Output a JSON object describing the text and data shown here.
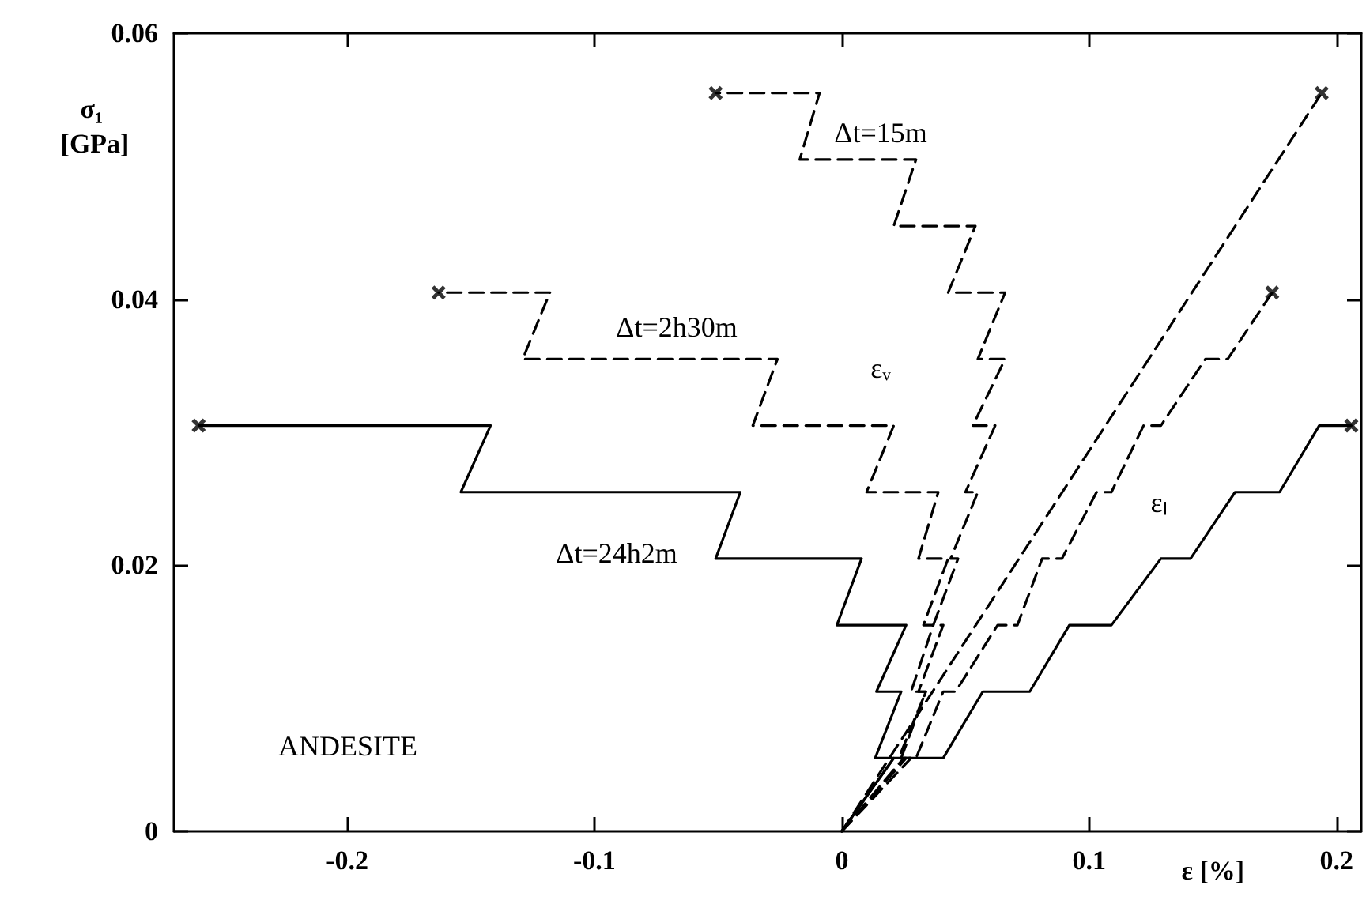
{
  "chart_data": {
    "type": "line",
    "ylabel": "σ₁ [GPa]",
    "xlabel": "ε [%]",
    "xlim": [
      -0.27,
      0.21
    ],
    "xticks": [
      -0.2,
      -0.1,
      0,
      0.1,
      0.2
    ],
    "ylim": [
      0,
      0.06
    ],
    "yticks": [
      0,
      0.02,
      0.04,
      0.06
    ],
    "grid": false,
    "annotations": [
      "Δt=15m",
      "Δt=2h30m",
      "Δt=24h2m",
      "εᵥ",
      "εₗ",
      "ANDESITE"
    ],
    "series": [
      {
        "color": "#000000",
        "line_style": "solid",
        "marker": "none",
        "x": [
          0,
          0.021,
          0.0135,
          0.024,
          0.014,
          0.026,
          -0.002,
          0.008,
          -0.051,
          -0.041,
          -0.154,
          -0.142,
          -0.26
        ],
        "values": [
          0,
          0.0055,
          0.0055,
          0.0105,
          0.0105,
          0.0155,
          0.0155,
          0.0205,
          0.0205,
          0.0255,
          0.0255,
          0.0305,
          0.0305
        ]
      },
      {
        "color": "#000000",
        "line_style": "solid",
        "marker": "none",
        "x": [
          0,
          0.021,
          0.041,
          0.057,
          0.076,
          0.092,
          0.109,
          0.129,
          0.141,
          0.159,
          0.177,
          0.193,
          0.206
        ],
        "values": [
          0,
          0.0055,
          0.0055,
          0.0105,
          0.0105,
          0.0155,
          0.0155,
          0.0205,
          0.0205,
          0.0255,
          0.0255,
          0.0305,
          0.0305
        ]
      },
      {
        "color": "#000000",
        "line_style": "dashed",
        "marker": "none",
        "x": [
          0,
          0.028,
          0.024,
          0.034,
          0.028,
          0.037,
          0.033,
          0.043,
          0.031,
          0.039,
          0.01,
          0.021,
          -0.036,
          -0.026,
          -0.129,
          -0.118,
          -0.163
        ],
        "values": [
          0,
          0.0055,
          0.0055,
          0.0105,
          0.0105,
          0.0155,
          0.0155,
          0.0205,
          0.0205,
          0.0255,
          0.0255,
          0.0305,
          0.0305,
          0.0355,
          0.0355,
          0.0405,
          0.0405
        ]
      },
      {
        "color": "#000000",
        "line_style": "dashed",
        "marker": "none",
        "x": [
          0,
          0.025,
          0.03,
          0.041,
          0.046,
          0.063,
          0.071,
          0.081,
          0.089,
          0.103,
          0.109,
          0.122,
          0.129,
          0.147,
          0.156,
          0.174
        ],
        "values": [
          0,
          0.0055,
          0.0055,
          0.0105,
          0.0105,
          0.0155,
          0.0155,
          0.0205,
          0.0205,
          0.0255,
          0.0255,
          0.0305,
          0.0305,
          0.0355,
          0.0355,
          0.0405
        ]
      },
      {
        "color": "#000000",
        "line_style": "dashed",
        "marker": "none",
        "x": [
          0,
          0.026,
          0.023,
          0.034,
          0.031,
          0.041,
          0.037,
          0.047,
          0.044,
          0.055,
          0.05,
          0.062,
          0.053,
          0.066,
          0.055,
          0.066,
          0.043,
          0.054,
          0.021,
          0.03,
          -0.017,
          -0.009,
          -0.051
        ],
        "values": [
          0,
          0.0055,
          0.0055,
          0.0105,
          0.0105,
          0.0155,
          0.0155,
          0.0205,
          0.0205,
          0.0255,
          0.0255,
          0.0305,
          0.0305,
          0.0355,
          0.0355,
          0.0405,
          0.0405,
          0.0455,
          0.0455,
          0.0505,
          0.0505,
          0.0555,
          0.0555
        ]
      },
      {
        "color": "#000000",
        "line_style": "dashed",
        "marker": "none",
        "x": [
          0,
          0.194
        ],
        "values": [
          0,
          0.0555
        ]
      },
      {
        "type": "scatter",
        "color": "#000000",
        "marker": "cross",
        "x": [
          -0.26,
          0.206,
          -0.163,
          0.174,
          -0.051,
          0.194
        ],
        "values": [
          0.0305,
          0.0305,
          0.0405,
          0.0405,
          0.0555,
          0.0555
        ]
      }
    ]
  }
}
